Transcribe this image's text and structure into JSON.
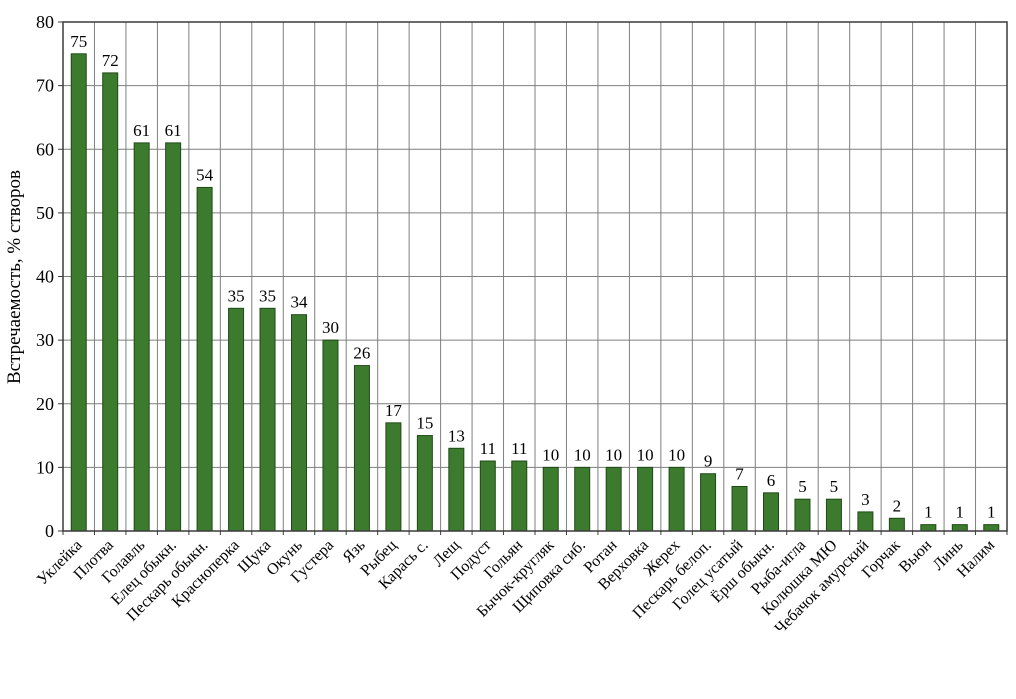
{
  "chart_data": {
    "type": "bar",
    "title": "",
    "xlabel": "",
    "ylabel": "Встречаемость, % створов",
    "ylim": [
      0,
      80
    ],
    "ytick_step": 10,
    "grid": "both",
    "legend": "none",
    "bar_color": "#3c7a2e",
    "bar_border_color": "#1f4a17",
    "grid_color": "#7f7f7f",
    "axis_color": "#3a3a3a",
    "categories": [
      "Уклейка",
      "Плотва",
      "Голавль",
      "Елец обыкн.",
      "Пескарь обыкн.",
      "Красноперка",
      "Щука",
      "Окунь",
      "Густера",
      "Язь",
      "Рыбец",
      "Карась с.",
      "Лещ",
      "Подуст",
      "Гольян",
      "Бычок-кругляк",
      "Щиповка сиб.",
      "Ротан",
      "Верховка",
      "Жерех",
      "Пескарь белоп.",
      "Голец усатый",
      "Ёрш обыкн.",
      "Рыба-игла",
      "Колюшка МЮ",
      "Чебачок амурский",
      "Горчак",
      "Вьюн",
      "Линь",
      "Налим"
    ],
    "values": [
      75,
      72,
      61,
      61,
      54,
      35,
      35,
      34,
      30,
      26,
      17,
      15,
      13,
      11,
      11,
      10,
      10,
      10,
      10,
      10,
      9,
      7,
      6,
      5,
      5,
      3,
      2,
      1,
      1,
      1
    ]
  }
}
